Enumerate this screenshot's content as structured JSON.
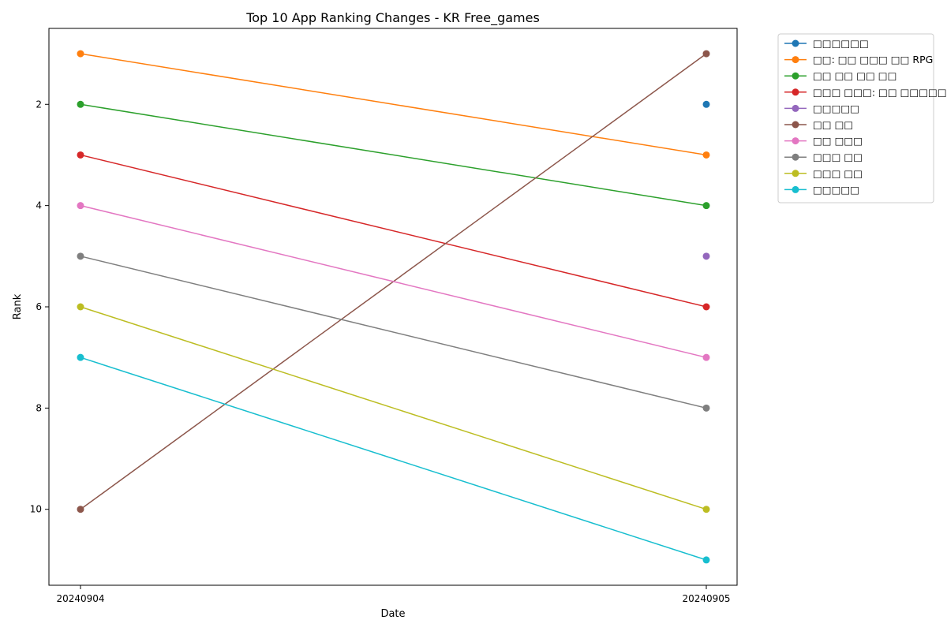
{
  "chart_data": {
    "type": "line",
    "title": "Top 10 App Ranking Changes - KR Free_games",
    "xlabel": "Date",
    "ylabel": "Rank",
    "x": [
      "20240904",
      "20240905"
    ],
    "y_inverted": true,
    "ylim": [
      11.5,
      0.5
    ],
    "yticks": [
      2,
      4,
      6,
      8,
      10
    ],
    "grid": false,
    "legend_position": "outside-top-right",
    "series": [
      {
        "name": "□□□□□□",
        "color": "#1f77b4",
        "values": [
          null,
          2
        ]
      },
      {
        "name": "□□: □□ □□□ □□ RPG",
        "color": "#ff7f0e",
        "values": [
          1,
          3
        ]
      },
      {
        "name": "□□ □□ □□ □□",
        "color": "#2ca02c",
        "values": [
          2,
          4
        ]
      },
      {
        "name": "□□□ □□□: □□ □□□□□ □□",
        "color": "#d62728",
        "values": [
          3,
          6
        ]
      },
      {
        "name": "□□□□□",
        "color": "#9467bd",
        "values": [
          null,
          5
        ]
      },
      {
        "name": "□□ □□",
        "color": "#8c564b",
        "values": [
          10,
          1
        ]
      },
      {
        "name": "□□ □□□",
        "color": "#e377c2",
        "values": [
          4,
          7
        ]
      },
      {
        "name": "□□□ □□",
        "color": "#7f7f7f",
        "values": [
          5,
          8
        ]
      },
      {
        "name": "□□□ □□",
        "color": "#bcbd22",
        "values": [
          6,
          10
        ]
      },
      {
        "name": "□□□□□",
        "color": "#17becf",
        "values": [
          7,
          11
        ]
      }
    ]
  }
}
